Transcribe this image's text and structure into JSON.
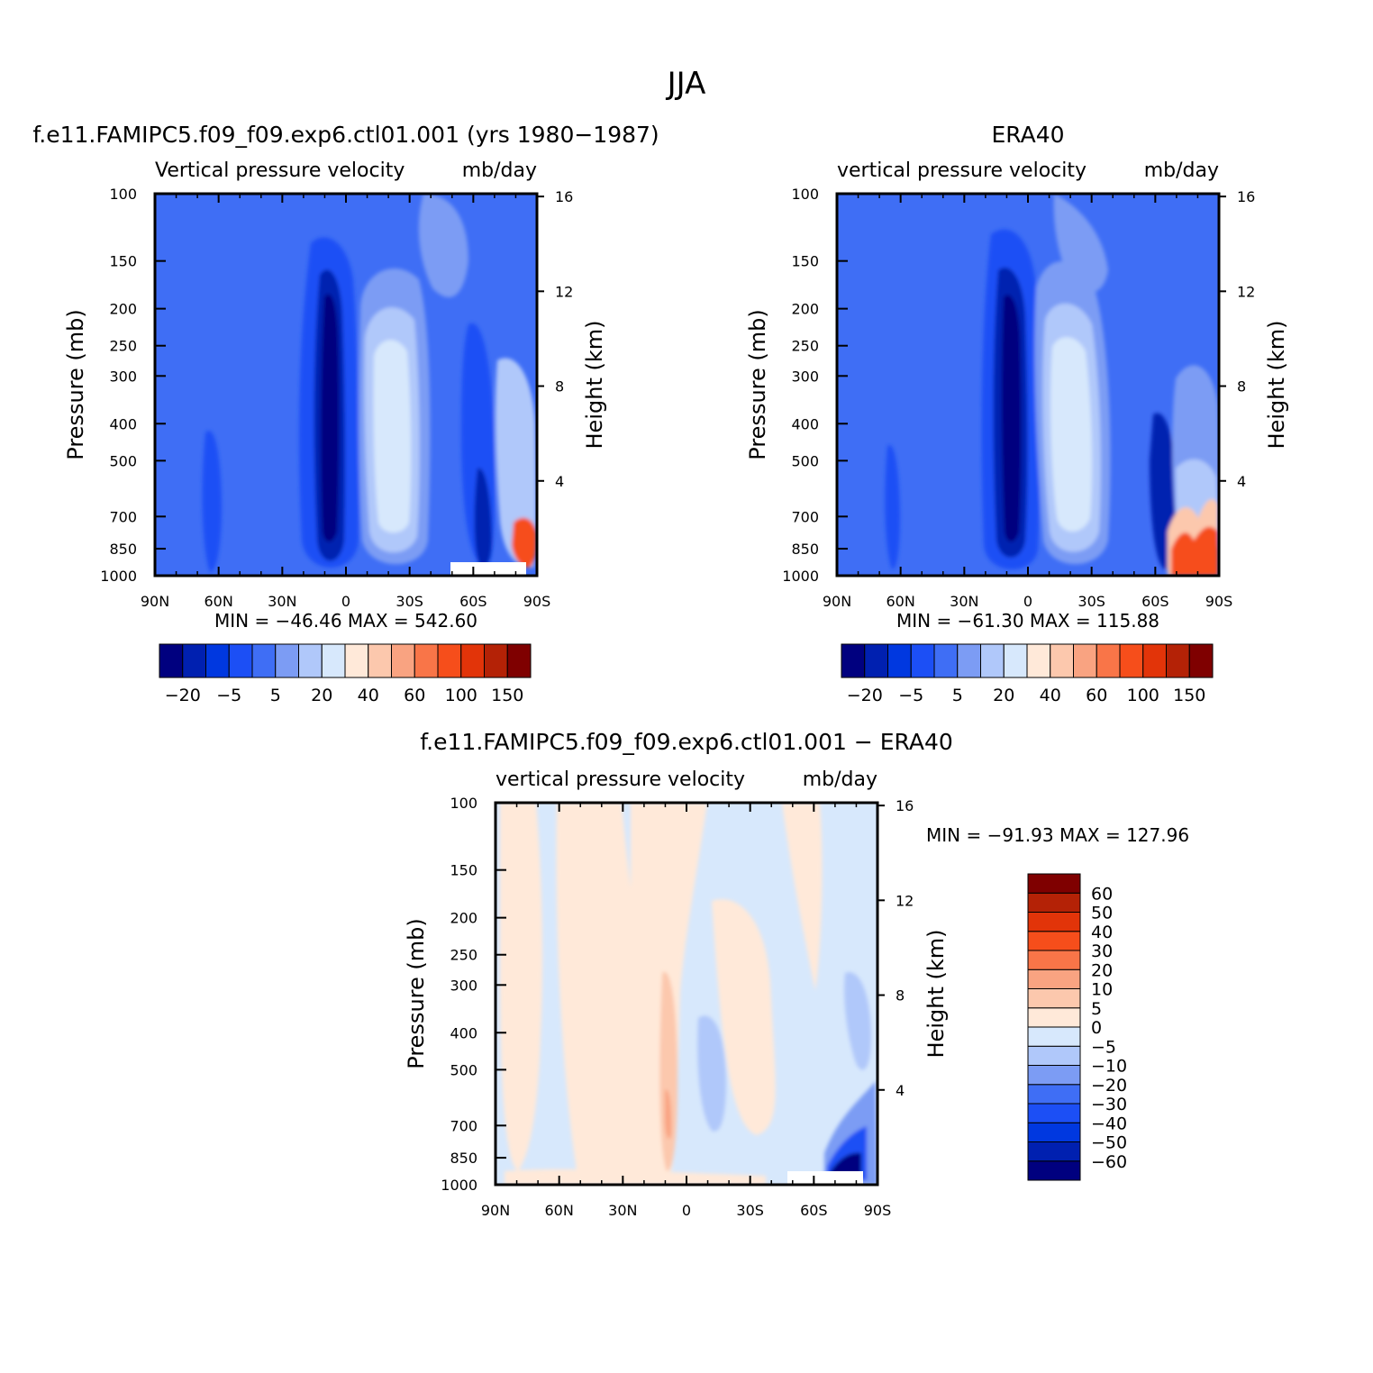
{
  "figure": {
    "title": "JJA"
  },
  "panel_a": {
    "subtitle": "f.e11.FAMIPC5.f09_f09.exp6.ctl01.001 (yrs 1980−1987)",
    "variable": "Vertical pressure velocity",
    "units": "mb/day",
    "ylabel": "Pressure (mb)",
    "y2label": "Height (km)",
    "minmax": "MIN = −46.46   MAX = 542.60"
  },
  "panel_b": {
    "subtitle": "ERA40",
    "variable": "vertical pressure velocity",
    "units": "mb/day",
    "ylabel": "Pressure (mb)",
    "y2label": "Height (km)",
    "minmax": "MIN = −61.30   MAX = 115.88"
  },
  "panel_c": {
    "subtitle": "f.e11.FAMIPC5.f09_f09.exp6.ctl01.001 − ERA40",
    "variable": "vertical pressure velocity",
    "units": "mb/day",
    "ylabel": "Pressure (mb)",
    "y2label": "Height (km)",
    "minmax": "MIN = −91.93   MAX = 127.96"
  },
  "chart_data": [
    {
      "type": "heatmap",
      "name": "model",
      "x_ticks": [
        "90N",
        "60N",
        "30N",
        "0",
        "30S",
        "60S",
        "90S"
      ],
      "x_range_deg": [
        90,
        -90
      ],
      "y_ticks_pressure": [
        100,
        150,
        200,
        250,
        300,
        400,
        500,
        700,
        850,
        1000
      ],
      "y_range_pressure": [
        100,
        1000
      ],
      "y2_ticks_height_km": [
        4,
        8,
        12,
        16
      ],
      "min": -46.46,
      "max": 542.6,
      "features": [
        {
          "lat": 10,
          "p_top": 200,
          "value": -40,
          "note": "deep ascent band"
        },
        {
          "lat": -20,
          "p_top": 250,
          "value": 35,
          "note": "subtropical descent"
        },
        {
          "lat": -60,
          "p_top": 250,
          "value": -25
        },
        {
          "lat": -85,
          "p_top": 700,
          "value": 150,
          "note": "surface high"
        }
      ]
    },
    {
      "type": "heatmap",
      "name": "obs",
      "x_ticks": [
        "90N",
        "60N",
        "30N",
        "0",
        "30S",
        "60S",
        "90S"
      ],
      "x_range_deg": [
        90,
        -90
      ],
      "y_ticks_pressure": [
        100,
        150,
        200,
        250,
        300,
        400,
        500,
        700,
        850,
        1000
      ],
      "y_range_pressure": [
        100,
        1000
      ],
      "y2_ticks_height_km": [
        4,
        8,
        12,
        16
      ],
      "min": -61.3,
      "max": 115.88,
      "features": [
        {
          "lat": 10,
          "p_top": 200,
          "value": -45
        },
        {
          "lat": -20,
          "p_top": 250,
          "value": 35
        },
        {
          "lat": -58,
          "p_top": 400,
          "value": -30
        },
        {
          "lat": -80,
          "p_top": 650,
          "value": 90
        }
      ]
    },
    {
      "type": "heatmap",
      "name": "difference",
      "x_ticks": [
        "90N",
        "60N",
        "30N",
        "0",
        "30S",
        "60S",
        "90S"
      ],
      "x_range_deg": [
        90,
        -90
      ],
      "y_ticks_pressure": [
        100,
        150,
        200,
        250,
        300,
        400,
        500,
        700,
        850,
        1000
      ],
      "y_range_pressure": [
        100,
        1000
      ],
      "y2_ticks_height_km": [
        4,
        8,
        12,
        16
      ],
      "min": -91.93,
      "max": 127.96,
      "features": [
        {
          "lat": 8,
          "p_top": 300,
          "value": 10
        },
        {
          "lat": -12,
          "p_top": 350,
          "value": -10
        },
        {
          "lat": -75,
          "p_top": 650,
          "value": -60
        }
      ]
    }
  ],
  "colorbar_abs": {
    "colors": [
      "#00007f",
      "#0020b0",
      "#0038e0",
      "#1c4ff5",
      "#3f6ef5",
      "#7c9cf4",
      "#b0c8fa",
      "#d7e8fc",
      "#ffe9d9",
      "#fcc8ad",
      "#f9a381",
      "#f97548",
      "#f64e1b",
      "#e23409",
      "#b42206",
      "#7f0000"
    ],
    "labels": [
      "−20",
      "−5",
      "5",
      "20",
      "40",
      "60",
      "100",
      "150"
    ]
  },
  "colorbar_diff": {
    "colors": [
      "#00007f",
      "#0020b0",
      "#0038e0",
      "#1c4ff5",
      "#3f6ef5",
      "#7c9cf4",
      "#b0c8fa",
      "#d7e8fc",
      "#ffe9d9",
      "#fcc8ad",
      "#f9a381",
      "#f97548",
      "#f64e1b",
      "#e23409",
      "#b42206",
      "#7f0000"
    ],
    "labels": [
      "60",
      "50",
      "40",
      "30",
      "20",
      "10",
      "5",
      "0",
      "−5",
      "−10",
      "−20",
      "−30",
      "−40",
      "−50",
      "−60"
    ]
  }
}
